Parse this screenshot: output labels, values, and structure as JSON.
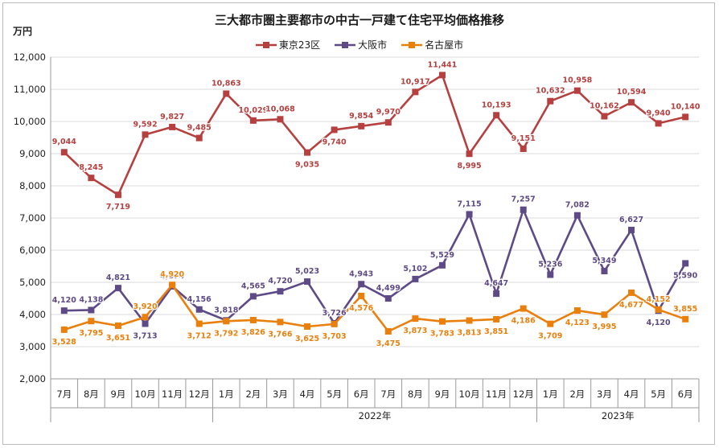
{
  "chart_data": {
    "type": "line",
    "title": "三大都市圏主要都市の中古一戸建て住宅平均価格推移",
    "ylabel": "万円",
    "ylim": [
      2000,
      12000
    ],
    "yticks": [
      "2,000",
      "3,000",
      "4,000",
      "5,000",
      "6,000",
      "7,000",
      "8,000",
      "9,000",
      "10,000",
      "11,000",
      "12,000"
    ],
    "categories": [
      "7月",
      "8月",
      "9月",
      "10月",
      "11月",
      "12月",
      "1月",
      "2月",
      "3月",
      "4月",
      "5月",
      "6月",
      "7月",
      "8月",
      "9月",
      "10月",
      "11月",
      "12月",
      "1月",
      "2月",
      "3月",
      "4月",
      "5月",
      "6月"
    ],
    "year_groups": [
      {
        "label": "",
        "start": 0,
        "end": 5
      },
      {
        "label": "2022年",
        "start": 6,
        "end": 17
      },
      {
        "label": "2023年",
        "start": 18,
        "end": 23
      }
    ],
    "legend_position": "top-center",
    "series": [
      {
        "name": "東京23区",
        "color": "#B5403F",
        "values": [
          9044,
          8245,
          7719,
          9592,
          9827,
          9485,
          10863,
          10029,
          10068,
          9035,
          9740,
          9854,
          9970,
          10917,
          11441,
          8995,
          10193,
          9151,
          10632,
          10958,
          10162,
          10594,
          9940,
          10140
        ],
        "labels": [
          "9,044",
          "8,245",
          "7,719",
          "9,592",
          "9,827",
          "9,485",
          "10,863",
          "10,029",
          "10,068",
          "9,035",
          "9,740",
          "9,854",
          "9,970",
          "10,917",
          "11,441",
          "8,995",
          "10,193",
          "9,151",
          "10,632",
          "10,958",
          "10,162",
          "10,594",
          "9,940",
          "10,140"
        ]
      },
      {
        "name": "大阪市",
        "color": "#5E4A86",
        "values": [
          4120,
          4138,
          4821,
          3713,
          4874,
          4156,
          3818,
          4565,
          4720,
          5023,
          3726,
          4943,
          4499,
          5102,
          5529,
          7115,
          4647,
          7257,
          5236,
          7082,
          5349,
          6627,
          4120,
          5590
        ],
        "labels": [
          "4,120",
          "4,138",
          "4,821",
          "3,713",
          "4,874",
          "4,156",
          "3,818",
          "4,565",
          "4,720",
          "5,023",
          "3,726",
          "4,943",
          "4,499",
          "5,102",
          "5,529",
          "7,115",
          "4,647",
          "7,257",
          "5,236",
          "7,082",
          "5,349",
          "6,627",
          "4,120",
          "5,590"
        ]
      },
      {
        "name": "名古屋市",
        "color": "#E9800E",
        "values": [
          3528,
          3795,
          3651,
          3920,
          4920,
          3712,
          3792,
          3826,
          3766,
          3625,
          3703,
          4576,
          3475,
          3873,
          3783,
          3813,
          3851,
          4186,
          3709,
          4123,
          3995,
          4677,
          4152,
          3855
        ],
        "labels": [
          "3,528",
          "3,795",
          "3,651",
          "3,920",
          "4,920",
          "3,712",
          "3,792",
          "3,826",
          "3,766",
          "3,625",
          "3,703",
          "4,576",
          "3,475",
          "3,873",
          "3,783",
          "3,813",
          "3,851",
          "4,186",
          "3,709",
          "4,123",
          "3,995",
          "4,677",
          "4,152",
          "3,855"
        ]
      }
    ]
  }
}
